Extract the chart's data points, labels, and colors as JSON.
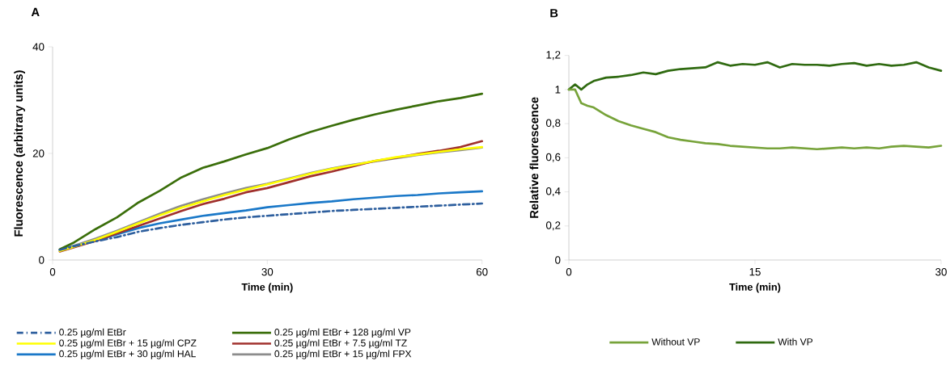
{
  "chart_data": [
    {
      "type": "line",
      "title": "A",
      "xlabel": "Time (min)",
      "ylabel": "Fluorescence (arbitrary units)",
      "x": [
        1,
        3,
        6,
        9,
        12,
        15,
        18,
        21,
        24,
        27,
        30,
        33,
        36,
        39,
        42,
        45,
        48,
        51,
        54,
        57,
        60
      ],
      "xlim": [
        0,
        60
      ],
      "ylim": [
        0,
        40
      ],
      "xticks": [
        0,
        30,
        60
      ],
      "yticks": [
        0,
        20,
        40
      ],
      "legend": "bottom",
      "series": [
        {
          "name": "0.25 µg/ml EtBr",
          "color": "#2e5f9e",
          "line_style": "dashed",
          "values": [
            1.9,
            2.6,
            3.5,
            4.3,
            5.3,
            6,
            6.6,
            7.1,
            7.6,
            8,
            8.3,
            8.6,
            8.9,
            9.2,
            9.4,
            9.6,
            9.8,
            10,
            10.2,
            10.4,
            10.6
          ]
        },
        {
          "name": "0.25 µg/ml EtBr + 128 µg/ml  VP",
          "color": "#3a6e0a",
          "values": [
            2,
            3.3,
            5.8,
            8,
            10.8,
            13,
            15.5,
            17.3,
            18.5,
            19.8,
            21,
            22.6,
            24,
            25.2,
            26.3,
            27.3,
            28.2,
            29,
            29.8,
            30.4,
            31.2
          ]
        },
        {
          "name": "0.25 µg/ml EtBr + 15 µg/ml CPZ",
          "color": "#ffff00",
          "values": [
            1.7,
            2.5,
            3.8,
            5.3,
            6.9,
            8.4,
            9.8,
            11,
            12.2,
            13.2,
            14.2,
            15.2,
            16.2,
            17.1,
            17.8,
            18.6,
            19.3,
            19.8,
            20.3,
            20.8,
            21.2
          ]
        },
        {
          "name": "0.25 µg/ml EtBr + 7.5 µg/ml TZ",
          "color": "#a0302c",
          "values": [
            1.6,
            2.4,
            3.6,
            5,
            6.4,
            7.8,
            9.2,
            10.5,
            11.5,
            12.7,
            13.5,
            14.6,
            15.7,
            16.6,
            17.6,
            18.6,
            19.2,
            19.9,
            20.5,
            21.2,
            22.3
          ]
        },
        {
          "name": "0.25 µg/ml EtBr + 30 µg/ml HAL",
          "color": "#1a78c8",
          "values": [
            1.9,
            2.6,
            3.6,
            4.8,
            6,
            6.9,
            7.6,
            8.3,
            8.8,
            9.3,
            9.9,
            10.3,
            10.7,
            11,
            11.4,
            11.7,
            12,
            12.2,
            12.5,
            12.7,
            12.9
          ]
        },
        {
          "name": "0.25 µg/ml EtBr + 15 µg/ml FPX",
          "color": "#8c8c8c",
          "values": [
            1.9,
            2.7,
            4,
            5.5,
            7.1,
            8.7,
            10.2,
            11.4,
            12.5,
            13.5,
            14.3,
            15.3,
            16.3,
            17.2,
            17.9,
            18.5,
            19.1,
            19.7,
            20.2,
            20.6,
            21.1
          ]
        }
      ]
    },
    {
      "type": "line",
      "title": "B",
      "xlabel": "Time (min)",
      "ylabel": "Relative fluorescence",
      "x": [
        0,
        0.5,
        1,
        1.5,
        2,
        3,
        4,
        5,
        6,
        7,
        8,
        9,
        10,
        11,
        12,
        13,
        14,
        15,
        16,
        17,
        18,
        19,
        20,
        21,
        22,
        23,
        24,
        25,
        26,
        27,
        28,
        29,
        30
      ],
      "xlim": [
        0,
        30
      ],
      "ylim": [
        0,
        1.2
      ],
      "xticks": [
        0,
        15,
        30
      ],
      "yticks": [
        0,
        {
          "value": 0.2,
          "label": "0,2"
        },
        {
          "value": 0.4,
          "label": "0,4"
        },
        {
          "value": 0.6,
          "label": "0,6"
        },
        {
          "value": 0.8,
          "label": "0,8"
        },
        1,
        {
          "value": 1.2,
          "label": "1,2"
        }
      ],
      "legend": "bottom",
      "series": [
        {
          "name": "Without VP",
          "color": "#77a33a",
          "values": [
            1.0,
            1.0,
            0.92,
            0.905,
            0.895,
            0.85,
            0.815,
            0.79,
            0.77,
            0.75,
            0.72,
            0.705,
            0.695,
            0.685,
            0.68,
            0.67,
            0.665,
            0.66,
            0.655,
            0.655,
            0.66,
            0.655,
            0.65,
            0.655,
            0.66,
            0.655,
            0.66,
            0.655,
            0.665,
            0.67,
            0.665,
            0.66,
            0.67
          ]
        },
        {
          "name": "With VP",
          "color": "#2f6a10",
          "values": [
            1.0,
            1.03,
            1.0,
            1.03,
            1.05,
            1.07,
            1.075,
            1.085,
            1.1,
            1.09,
            1.11,
            1.12,
            1.125,
            1.13,
            1.16,
            1.14,
            1.15,
            1.145,
            1.16,
            1.13,
            1.15,
            1.145,
            1.145,
            1.14,
            1.15,
            1.155,
            1.14,
            1.15,
            1.14,
            1.145,
            1.16,
            1.13,
            1.11
          ]
        }
      ]
    }
  ]
}
